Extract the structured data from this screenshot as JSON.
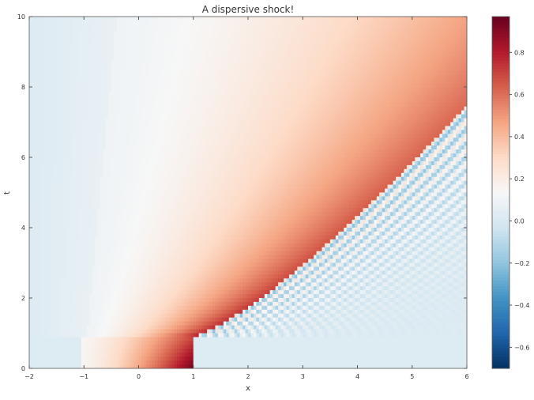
{
  "chart_data": {
    "type": "heatmap",
    "title": "A dispersive shock!",
    "xlabel": "x",
    "ylabel": "t",
    "xlim": [
      -2,
      6
    ],
    "ylim": [
      0,
      10
    ],
    "x_ticks": [
      "−2",
      "−1",
      "0",
      "1",
      "2",
      "3",
      "4",
      "5",
      "6"
    ],
    "y_ticks": [
      "0",
      "2",
      "4",
      "6",
      "8",
      "10"
    ],
    "colorbar": {
      "range": [
        -0.7,
        0.97
      ],
      "ticks": [
        "−0.6",
        "−0.4",
        "−0.2",
        "0.0",
        "0.2",
        "0.4",
        "0.6",
        "0.8"
      ],
      "colormap": "RdBu_r"
    },
    "colormap_stops": [
      [
        0.0,
        "#053061"
      ],
      [
        0.1,
        "#2166ac"
      ],
      [
        0.2,
        "#4393c3"
      ],
      [
        0.3,
        "#92c5de"
      ],
      [
        0.4,
        "#d1e5f0"
      ],
      [
        0.5,
        "#f7f7f7"
      ],
      [
        0.6,
        "#fddbc7"
      ],
      [
        0.7,
        "#f4a582"
      ],
      [
        0.8,
        "#d6604d"
      ],
      [
        0.9,
        "#b2182b"
      ],
      [
        1.0,
        "#67001f"
      ]
    ],
    "grid": false
  }
}
